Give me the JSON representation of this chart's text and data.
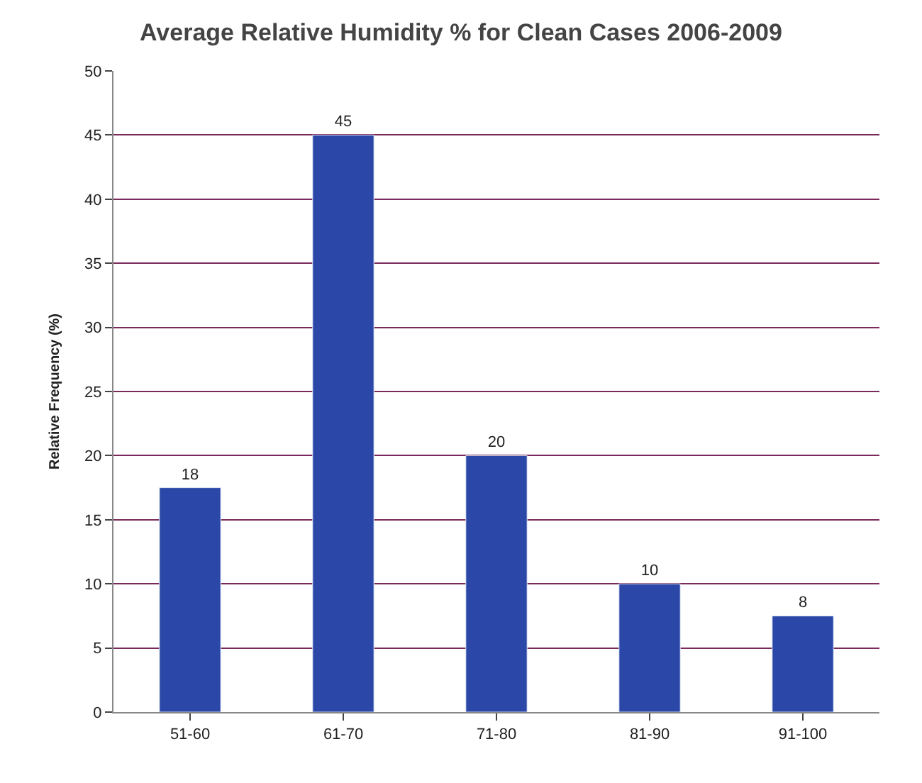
{
  "chart_data": {
    "type": "bar",
    "title": "Average Relative Humidity % for Clean Cases 2006-2009",
    "ylabel": "Relative Frequency (%)",
    "categories": [
      "51-60",
      "61-70",
      "71-80",
      "81-90",
      "91-100"
    ],
    "values": [
      17.5,
      45,
      20,
      10,
      7.5
    ],
    "value_labels": [
      "18",
      "45",
      "20",
      "10",
      "8"
    ],
    "color": "#2b48a8",
    "ylim": [
      0,
      50
    ],
    "yticks": [
      0,
      5,
      10,
      15,
      20,
      25,
      30,
      35,
      40,
      45,
      50
    ],
    "grid": "y",
    "legend": false
  }
}
